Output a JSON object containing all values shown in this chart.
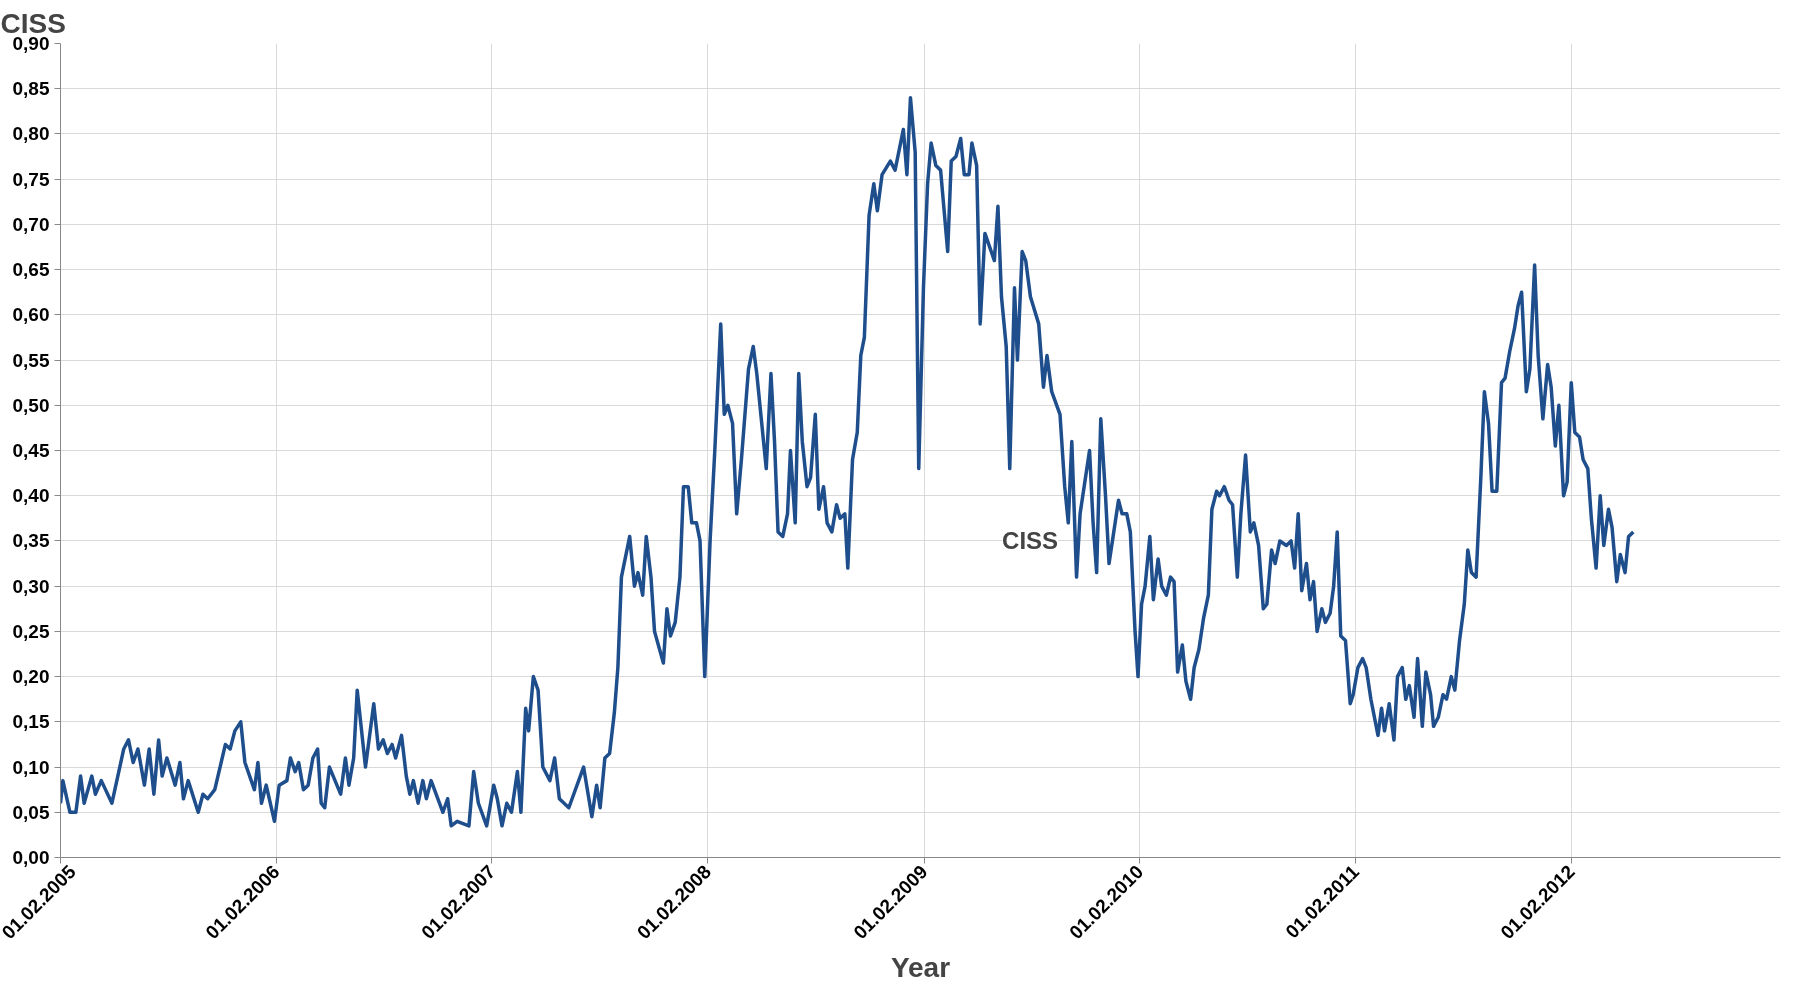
{
  "chart_data": {
    "type": "line",
    "ylabel": "CISS",
    "xlabel": "Year",
    "grid": true,
    "marker": "none",
    "line_style": "solid",
    "xlim": [
      "2005-02-01",
      "2013-01-20"
    ],
    "xticks": [
      {
        "value": "2005-02-01",
        "label": "01.02.2005"
      },
      {
        "value": "2006-02-01",
        "label": "01.02.2006"
      },
      {
        "value": "2007-02-01",
        "label": "01.02.2007"
      },
      {
        "value": "2008-02-01",
        "label": "01.02.2008"
      },
      {
        "value": "2009-02-01",
        "label": "01.02.2009"
      },
      {
        "value": "2010-02-01",
        "label": "01.02.2010"
      },
      {
        "value": "2011-02-01",
        "label": "01.02.2011"
      },
      {
        "value": "2012-02-01",
        "label": "01.02.2012"
      }
    ],
    "ylim": [
      0,
      0.9
    ],
    "yticks": [
      {
        "value": 0,
        "label": "0,00"
      },
      {
        "value": 0.05,
        "label": "0,05"
      },
      {
        "value": 0.1,
        "label": "0,10"
      },
      {
        "value": 0.15,
        "label": "0,15"
      },
      {
        "value": 0.2,
        "label": "0,20"
      },
      {
        "value": 0.25,
        "label": "0,25"
      },
      {
        "value": 0.3,
        "label": "0,30"
      },
      {
        "value": 0.35,
        "label": "0,35"
      },
      {
        "value": 0.4,
        "label": "0,40"
      },
      {
        "value": 0.45,
        "label": "0,45"
      },
      {
        "value": 0.5,
        "label": "0,50"
      },
      {
        "value": 0.55,
        "label": "0,55"
      },
      {
        "value": 0.6,
        "label": "0,60"
      },
      {
        "value": 0.65,
        "label": "0,65"
      },
      {
        "value": 0.7,
        "label": "0,70"
      },
      {
        "value": 0.75,
        "label": "0,75"
      },
      {
        "value": 0.8,
        "label": "0,80"
      },
      {
        "value": 0.85,
        "label": "0,85"
      },
      {
        "value": 0.9,
        "label": "0,90"
      }
    ],
    "annotations": [
      "CISS"
    ],
    "series": [
      {
        "color": "#1f4e8c",
        "x": [
          "2005-02-01",
          "2005-02-05",
          "2005-02-17",
          "2005-02-27",
          "2005-03-07",
          "2005-03-13",
          "2005-03-26",
          "2005-04-01",
          "2005-04-11",
          "2005-04-29",
          "2005-05-19",
          "2005-05-27",
          "2005-06-04",
          "2005-06-12",
          "2005-06-23",
          "2005-07-01",
          "2005-07-09",
          "2005-07-17",
          "2005-07-23",
          "2005-07-31",
          "2005-08-14",
          "2005-08-22",
          "2005-08-28",
          "2005-09-05",
          "2005-09-22",
          "2005-09-30",
          "2005-10-08",
          "2005-10-20",
          "2005-11-07",
          "2005-11-15",
          "2005-11-23",
          "2005-12-03",
          "2005-12-10",
          "2005-12-26",
          "2006-01-01",
          "2006-01-07",
          "2006-01-15",
          "2006-01-29",
          "2006-02-06",
          "2006-02-19",
          "2006-02-25",
          "2006-03-05",
          "2006-03-11",
          "2006-03-19",
          "2006-03-27",
          "2006-04-04",
          "2006-04-12",
          "2006-04-18",
          "2006-04-24",
          "2006-05-02",
          "2006-05-21",
          "2006-05-29",
          "2006-06-04",
          "2006-06-12",
          "2006-06-18",
          "2006-07-02",
          "2006-07-16",
          "2006-07-24",
          "2006-08-01",
          "2006-08-08",
          "2006-08-16",
          "2006-08-22",
          "2006-09-01",
          "2006-09-09",
          "2006-09-15",
          "2006-09-21",
          "2006-09-29",
          "2006-10-07",
          "2006-10-13",
          "2006-10-21",
          "2006-11-10",
          "2006-11-18",
          "2006-11-24",
          "2006-12-04",
          "2006-12-24",
          "2007-01-01",
          "2007-01-09",
          "2007-01-23",
          "2007-02-04",
          "2007-02-10",
          "2007-02-18",
          "2007-02-26",
          "2007-03-06",
          "2007-03-16",
          "2007-03-22",
          "2007-03-30",
          "2007-04-04",
          "2007-04-12",
          "2007-04-20",
          "2007-04-28",
          "2007-05-10",
          "2007-05-18",
          "2007-05-26",
          "2007-06-11",
          "2007-07-06",
          "2007-07-20",
          "2007-07-28",
          "2007-08-03",
          "2007-08-11",
          "2007-08-19",
          "2007-08-27",
          "2007-09-02",
          "2007-09-08",
          "2007-09-22",
          "2007-09-30",
          "2007-10-06",
          "2007-10-14",
          "2007-10-20",
          "2007-10-28",
          "2007-11-03",
          "2007-11-18",
          "2007-11-24",
          "2007-11-30",
          "2007-12-08",
          "2007-12-16",
          "2007-12-22",
          "2007-12-30",
          "2008-01-05",
          "2008-01-13",
          "2008-01-19",
          "2008-01-27",
          "2008-02-05",
          "2008-02-13",
          "2008-02-23",
          "2008-02-29",
          "2008-03-06",
          "2008-03-14",
          "2008-03-21",
          "2008-03-29",
          "2008-04-10",
          "2008-04-18",
          "2008-04-24",
          "2008-05-10",
          "2008-05-18",
          "2008-05-24",
          "2008-05-30",
          "2008-06-07",
          "2008-06-15",
          "2008-06-20",
          "2008-06-28",
          "2008-07-04",
          "2008-07-10",
          "2008-07-18",
          "2008-07-24",
          "2008-08-01",
          "2008-08-07",
          "2008-08-15",
          "2008-08-21",
          "2008-08-29",
          "2008-09-06",
          "2008-09-12",
          "2008-09-20",
          "2008-09-25",
          "2008-10-03",
          "2008-10-11",
          "2008-10-17",
          "2008-10-23",
          "2008-10-31",
          "2008-11-08",
          "2008-11-14",
          "2008-11-22",
          "2008-12-06",
          "2008-12-14",
          "2008-12-28",
          "2009-01-03",
          "2009-01-09",
          "2009-01-17",
          "2009-01-23",
          "2009-01-31",
          "2009-02-07",
          "2009-02-13",
          "2009-02-21",
          "2009-03-01",
          "2009-03-07",
          "2009-03-13",
          "2009-03-19",
          "2009-03-27",
          "2009-04-04",
          "2009-04-10",
          "2009-04-18",
          "2009-04-23",
          "2009-05-01",
          "2009-05-07",
          "2009-05-15",
          "2009-05-31",
          "2009-06-06",
          "2009-06-12",
          "2009-06-20",
          "2009-06-26",
          "2009-07-04",
          "2009-07-09",
          "2009-07-17",
          "2009-07-23",
          "2009-07-31",
          "2009-08-14",
          "2009-08-22",
          "2009-08-28",
          "2009-09-05",
          "2009-09-19",
          "2009-09-27",
          "2009-10-03",
          "2009-10-09",
          "2009-10-17",
          "2009-10-23",
          "2009-11-08",
          "2009-11-14",
          "2009-11-20",
          "2009-11-27",
          "2009-12-05",
          "2009-12-11",
          "2009-12-27",
          "2010-01-02",
          "2010-01-10",
          "2010-01-16",
          "2010-01-24",
          "2010-01-29",
          "2010-02-04",
          "2010-02-10",
          "2010-02-18",
          "2010-02-24",
          "2010-03-04",
          "2010-03-10",
          "2010-03-18",
          "2010-03-25",
          "2010-03-31",
          "2010-04-06",
          "2010-04-14",
          "2010-04-20",
          "2010-04-28",
          "2010-05-04",
          "2010-05-12",
          "2010-05-20",
          "2010-05-28",
          "2010-06-03",
          "2010-06-11",
          "2010-06-16",
          "2010-06-24",
          "2010-07-02",
          "2010-07-08",
          "2010-07-16",
          "2010-07-22",
          "2010-07-30",
          "2010-08-07",
          "2010-08-13",
          "2010-08-21",
          "2010-08-29",
          "2010-09-04",
          "2010-09-12",
          "2010-09-18",
          "2010-09-26",
          "2010-10-07",
          "2010-10-15",
          "2010-10-21",
          "2010-10-27",
          "2010-11-02",
          "2010-11-10",
          "2010-11-16",
          "2010-11-22",
          "2010-11-28",
          "2010-12-06",
          "2010-12-12",
          "2010-12-20",
          "2010-12-26",
          "2011-01-01",
          "2011-01-07",
          "2011-01-15",
          "2011-01-23",
          "2011-01-28",
          "2011-02-05",
          "2011-02-13",
          "2011-02-19",
          "2011-02-27",
          "2011-03-11",
          "2011-03-17",
          "2011-03-22",
          "2011-03-30",
          "2011-04-07",
          "2011-04-13",
          "2011-04-21",
          "2011-04-27",
          "2011-05-03",
          "2011-05-11",
          "2011-05-17",
          "2011-05-25",
          "2011-05-31",
          "2011-06-08",
          "2011-06-13",
          "2011-06-21",
          "2011-06-29",
          "2011-07-05",
          "2011-07-13",
          "2011-07-19",
          "2011-07-27",
          "2011-08-04",
          "2011-08-10",
          "2011-08-16",
          "2011-08-24",
          "2011-09-01",
          "2011-09-07",
          "2011-09-14",
          "2011-09-20",
          "2011-09-28",
          "2011-10-06",
          "2011-10-12",
          "2011-10-20",
          "2011-10-28",
          "2011-11-03",
          "2011-11-09",
          "2011-11-17",
          "2011-11-23",
          "2011-12-01",
          "2011-12-07",
          "2011-12-15",
          "2011-12-23",
          "2011-12-29",
          "2012-01-05",
          "2012-01-11",
          "2012-01-19",
          "2012-01-25",
          "2012-02-01",
          "2012-02-07",
          "2012-02-15",
          "2012-02-21",
          "2012-02-29",
          "2012-03-06",
          "2012-03-14",
          "2012-03-21",
          "2012-03-27",
          "2012-04-04",
          "2012-04-10",
          "2012-04-18",
          "2012-04-24",
          "2012-05-02",
          "2012-05-08",
          "2012-05-16"
        ],
        "values": [
          0.06,
          0.085,
          0.05,
          0.05,
          0.09,
          0.06,
          0.09,
          0.07,
          0.085,
          0.06,
          0.12,
          0.13,
          0.105,
          0.12,
          0.08,
          0.12,
          0.07,
          0.13,
          0.09,
          0.11,
          0.08,
          0.105,
          0.065,
          0.085,
          0.05,
          0.07,
          0.065,
          0.075,
          0.125,
          0.12,
          0.14,
          0.15,
          0.105,
          0.075,
          0.105,
          0.06,
          0.08,
          0.04,
          0.08,
          0.085,
          0.11,
          0.095,
          0.105,
          0.075,
          0.08,
          0.11,
          0.12,
          0.06,
          0.055,
          0.1,
          0.07,
          0.11,
          0.08,
          0.11,
          0.185,
          0.1,
          0.17,
          0.12,
          0.13,
          0.115,
          0.125,
          0.11,
          0.135,
          0.09,
          0.07,
          0.085,
          0.06,
          0.085,
          0.065,
          0.085,
          0.05,
          0.065,
          0.035,
          0.04,
          0.035,
          0.095,
          0.06,
          0.035,
          0.08,
          0.065,
          0.035,
          0.06,
          0.05,
          0.095,
          0.05,
          0.165,
          0.14,
          0.2,
          0.185,
          0.1,
          0.085,
          0.11,
          0.065,
          0.055,
          0.1,
          0.045,
          0.08,
          0.055,
          0.11,
          0.115,
          0.16,
          0.21,
          0.31,
          0.355,
          0.3,
          0.315,
          0.29,
          0.355,
          0.31,
          0.25,
          0.215,
          0.275,
          0.245,
          0.26,
          0.31,
          0.41,
          0.41,
          0.37,
          0.37,
          0.35,
          0.2,
          0.35,
          0.45,
          0.59,
          0.49,
          0.5,
          0.48,
          0.38,
          0.44,
          0.54,
          0.565,
          0.535,
          0.43,
          0.535,
          0.46,
          0.36,
          0.355,
          0.38,
          0.45,
          0.37,
          0.535,
          0.46,
          0.41,
          0.42,
          0.49,
          0.385,
          0.41,
          0.37,
          0.36,
          0.39,
          0.375,
          0.38,
          0.32,
          0.44,
          0.47,
          0.555,
          0.575,
          0.71,
          0.745,
          0.715,
          0.755,
          0.77,
          0.76,
          0.805,
          0.755,
          0.84,
          0.78,
          0.43,
          0.63,
          0.745,
          0.79,
          0.765,
          0.76,
          0.715,
          0.67,
          0.77,
          0.775,
          0.795,
          0.755,
          0.755,
          0.79,
          0.765,
          0.59,
          0.69,
          0.66,
          0.72,
          0.62,
          0.565,
          0.43,
          0.63,
          0.55,
          0.67,
          0.66,
          0.62,
          0.59,
          0.52,
          0.555,
          0.515,
          0.49,
          0.41,
          0.37,
          0.46,
          0.31,
          0.38,
          0.45,
          0.37,
          0.315,
          0.485,
          0.4,
          0.325,
          0.395,
          0.38,
          0.38,
          0.36,
          0.25,
          0.2,
          0.28,
          0.3,
          0.355,
          0.285,
          0.33,
          0.3,
          0.29,
          0.31,
          0.305,
          0.205,
          0.235,
          0.195,
          0.175,
          0.21,
          0.23,
          0.265,
          0.29,
          0.385,
          0.405,
          0.4,
          0.41,
          0.395,
          0.39,
          0.31,
          0.38,
          0.445,
          0.36,
          0.37,
          0.345,
          0.275,
          0.28,
          0.34,
          0.325,
          0.35,
          0.345,
          0.35,
          0.32,
          0.38,
          0.295,
          0.325,
          0.285,
          0.305,
          0.25,
          0.275,
          0.26,
          0.27,
          0.3,
          0.36,
          0.245,
          0.24,
          0.17,
          0.18,
          0.21,
          0.22,
          0.21,
          0.175,
          0.135,
          0.165,
          0.14,
          0.17,
          0.13,
          0.2,
          0.21,
          0.175,
          0.19,
          0.155,
          0.22,
          0.145,
          0.205,
          0.18,
          0.145,
          0.155,
          0.18,
          0.175,
          0.2,
          0.185,
          0.24,
          0.28,
          0.34,
          0.315,
          0.31,
          0.42,
          0.515,
          0.48,
          0.405,
          0.405,
          0.525,
          0.53,
          0.56,
          0.585,
          0.61,
          0.625,
          0.515,
          0.54,
          0.655,
          0.555,
          0.485,
          0.545,
          0.52,
          0.455,
          0.5,
          0.4,
          0.415,
          0.525,
          0.47,
          0.465,
          0.44,
          0.43,
          0.375,
          0.32,
          0.4,
          0.345,
          0.385,
          0.365,
          0.305,
          0.335,
          0.315,
          0.355,
          0.36
        ]
      }
    ]
  }
}
